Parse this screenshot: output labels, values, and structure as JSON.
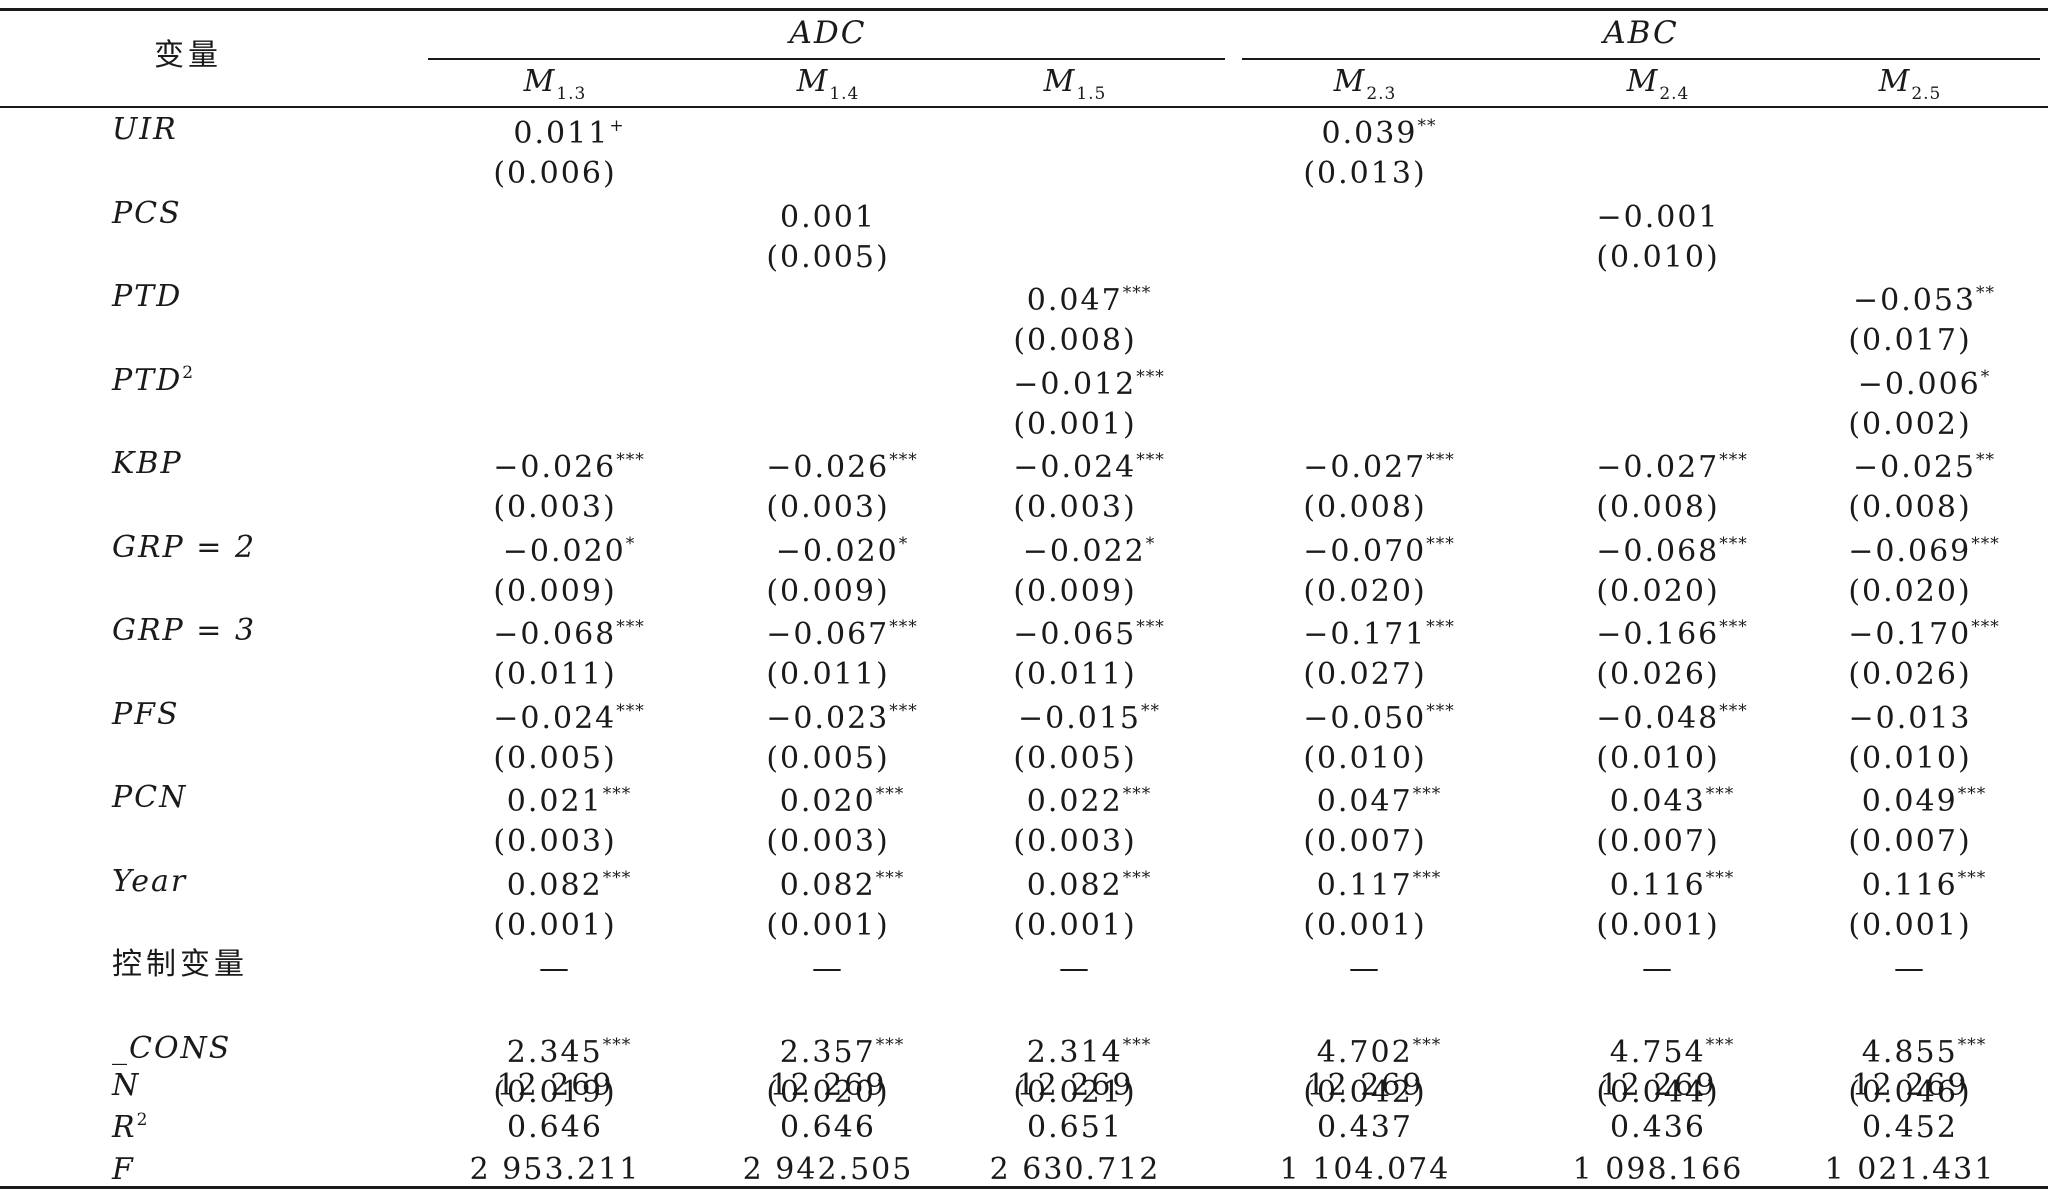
{
  "header": {
    "variable_label": "变量",
    "groups": [
      {
        "label": "ADC"
      },
      {
        "label": "ABC"
      }
    ],
    "models": [
      {
        "name": "M",
        "sub": "1.3"
      },
      {
        "name": "M",
        "sub": "1.4"
      },
      {
        "name": "M",
        "sub": "1.5"
      },
      {
        "name": "M",
        "sub": "2.3"
      },
      {
        "name": "M",
        "sub": "2.4"
      },
      {
        "name": "M",
        "sub": "2.5"
      }
    ]
  },
  "rows": [
    {
      "name": "UIR",
      "sup": "",
      "style": "italic",
      "coef": [
        {
          "v": "0.011",
          "s": "+"
        },
        {
          "v": "",
          "s": ""
        },
        {
          "v": "",
          "s": ""
        },
        {
          "v": "0.039",
          "s": "**"
        },
        {
          "v": "",
          "s": ""
        },
        {
          "v": "",
          "s": ""
        }
      ],
      "se": [
        "(0.006)",
        "",
        "",
        "(0.013)",
        "",
        ""
      ]
    },
    {
      "name": "PCS",
      "sup": "",
      "style": "italic",
      "coef": [
        {
          "v": "",
          "s": ""
        },
        {
          "v": "0.001",
          "s": ""
        },
        {
          "v": "",
          "s": ""
        },
        {
          "v": "",
          "s": ""
        },
        {
          "v": "−0.001",
          "s": ""
        },
        {
          "v": "",
          "s": ""
        }
      ],
      "se": [
        "",
        "(0.005)",
        "",
        "",
        "(0.010)",
        ""
      ]
    },
    {
      "name": "PTD",
      "sup": "",
      "style": "italic",
      "coef": [
        {
          "v": "",
          "s": ""
        },
        {
          "v": "",
          "s": ""
        },
        {
          "v": "0.047",
          "s": "***"
        },
        {
          "v": "",
          "s": ""
        },
        {
          "v": "",
          "s": ""
        },
        {
          "v": "−0.053",
          "s": "**"
        }
      ],
      "se": [
        "",
        "",
        "(0.008)",
        "",
        "",
        "(0.017)"
      ]
    },
    {
      "name": "PTD",
      "sup": "2",
      "style": "italic",
      "coef": [
        {
          "v": "",
          "s": ""
        },
        {
          "v": "",
          "s": ""
        },
        {
          "v": "−0.012",
          "s": "***"
        },
        {
          "v": "",
          "s": ""
        },
        {
          "v": "",
          "s": ""
        },
        {
          "v": "−0.006",
          "s": "*"
        }
      ],
      "se": [
        "",
        "",
        "(0.001)",
        "",
        "",
        "(0.002)"
      ]
    },
    {
      "name": "KBP",
      "sup": "",
      "style": "italic",
      "coef": [
        {
          "v": "−0.026",
          "s": "***"
        },
        {
          "v": "−0.026",
          "s": "***"
        },
        {
          "v": "−0.024",
          "s": "***"
        },
        {
          "v": "−0.027",
          "s": "***"
        },
        {
          "v": "−0.027",
          "s": "***"
        },
        {
          "v": "−0.025",
          "s": "**"
        }
      ],
      "se": [
        "(0.003)",
        "(0.003)",
        "(0.003)",
        "(0.008)",
        "(0.008)",
        "(0.008)"
      ]
    },
    {
      "name": "GRP = 2",
      "sup": "",
      "style": "italic",
      "coef": [
        {
          "v": "−0.020",
          "s": "*"
        },
        {
          "v": "−0.020",
          "s": "*"
        },
        {
          "v": "−0.022",
          "s": "*"
        },
        {
          "v": "−0.070",
          "s": "***"
        },
        {
          "v": "−0.068",
          "s": "***"
        },
        {
          "v": "−0.069",
          "s": "***"
        }
      ],
      "se": [
        "(0.009)",
        "(0.009)",
        "(0.009)",
        "(0.020)",
        "(0.020)",
        "(0.020)"
      ]
    },
    {
      "name": "GRP = 3",
      "sup": "",
      "style": "italic",
      "coef": [
        {
          "v": "−0.068",
          "s": "***"
        },
        {
          "v": "−0.067",
          "s": "***"
        },
        {
          "v": "−0.065",
          "s": "***"
        },
        {
          "v": "−0.171",
          "s": "***"
        },
        {
          "v": "−0.166",
          "s": "***"
        },
        {
          "v": "−0.170",
          "s": "***"
        }
      ],
      "se": [
        "(0.011)",
        "(0.011)",
        "(0.011)",
        "(0.027)",
        "(0.026)",
        "(0.026)"
      ]
    },
    {
      "name": "PFS",
      "sup": "",
      "style": "italic",
      "coef": [
        {
          "v": "−0.024",
          "s": "***"
        },
        {
          "v": "−0.023",
          "s": "***"
        },
        {
          "v": "−0.015",
          "s": "**"
        },
        {
          "v": "−0.050",
          "s": "***"
        },
        {
          "v": "−0.048",
          "s": "***"
        },
        {
          "v": "−0.013",
          "s": ""
        }
      ],
      "se": [
        "(0.005)",
        "(0.005)",
        "(0.005)",
        "(0.010)",
        "(0.010)",
        "(0.010)"
      ]
    },
    {
      "name": "PCN",
      "sup": "",
      "style": "italic",
      "coef": [
        {
          "v": "0.021",
          "s": "***"
        },
        {
          "v": "0.020",
          "s": "***"
        },
        {
          "v": "0.022",
          "s": "***"
        },
        {
          "v": "0.047",
          "s": "***"
        },
        {
          "v": "0.043",
          "s": "***"
        },
        {
          "v": "0.049",
          "s": "***"
        }
      ],
      "se": [
        "(0.003)",
        "(0.003)",
        "(0.003)",
        "(0.007)",
        "(0.007)",
        "(0.007)"
      ]
    },
    {
      "name": "Year",
      "sup": "",
      "style": "italic",
      "coef": [
        {
          "v": "0.082",
          "s": "***"
        },
        {
          "v": "0.082",
          "s": "***"
        },
        {
          "v": "0.082",
          "s": "***"
        },
        {
          "v": "0.117",
          "s": "***"
        },
        {
          "v": "0.116",
          "s": "***"
        },
        {
          "v": "0.116",
          "s": "***"
        }
      ],
      "se": [
        "(0.001)",
        "(0.001)",
        "(0.001)",
        "(0.001)",
        "(0.001)",
        "(0.001)"
      ]
    },
    {
      "name": "控制变量",
      "sup": "",
      "style": "cn",
      "coef": [
        {
          "v": "—",
          "s": ""
        },
        {
          "v": "—",
          "s": ""
        },
        {
          "v": "—",
          "s": ""
        },
        {
          "v": "—",
          "s": ""
        },
        {
          "v": "—",
          "s": ""
        },
        {
          "v": "—",
          "s": ""
        }
      ],
      "se": [
        "",
        "",
        "",
        "",
        "",
        ""
      ]
    },
    {
      "name": "_CONS",
      "sup": "",
      "style": "italic",
      "coef": [
        {
          "v": "2.345",
          "s": "***"
        },
        {
          "v": "2.357",
          "s": "***"
        },
        {
          "v": "2.314",
          "s": "***"
        },
        {
          "v": "4.702",
          "s": "***"
        },
        {
          "v": "4.754",
          "s": "***"
        },
        {
          "v": "4.855",
          "s": "***"
        }
      ],
      "se": [
        "(0.019)",
        "(0.020)",
        "(0.021)",
        "(0.042)",
        "(0.044)",
        "(0.046)"
      ]
    }
  ],
  "stats": [
    {
      "name": "N",
      "sup": "",
      "values": [
        "12 269",
        "12 269",
        "12 269",
        "12 269",
        "12 269",
        "12 269"
      ]
    },
    {
      "name": "R",
      "sup": "2",
      "values": [
        "0.646",
        "0.646",
        "0.651",
        "0.437",
        "0.436",
        "0.452"
      ]
    },
    {
      "name": "F",
      "sup": "",
      "values": [
        "2 953.211",
        "2 942.505",
        "2 630.712",
        "1 104.074",
        "1 098.166",
        "1 021.431"
      ]
    }
  ]
}
